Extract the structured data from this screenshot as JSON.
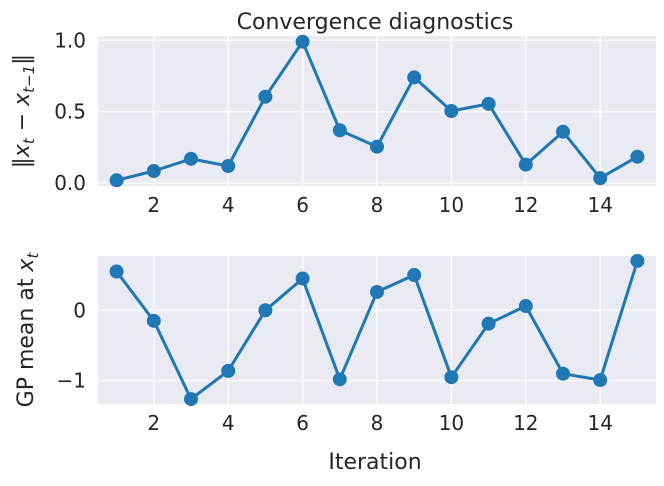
{
  "chart_data": [
    {
      "type": "line",
      "title": "Convergence diagnostics",
      "xlabel": "",
      "ylabel": "‖x_t − x_{t−1}‖",
      "x": [
        1,
        2,
        3,
        4,
        5,
        6,
        7,
        8,
        9,
        10,
        11,
        12,
        13,
        14,
        15
      ],
      "series": [
        {
          "values": [
            0.02,
            0.085,
            0.17,
            0.12,
            0.605,
            0.99,
            0.37,
            0.255,
            0.74,
            0.505,
            0.555,
            0.13,
            0.36,
            0.035,
            0.185
          ]
        }
      ],
      "xlim": [
        0.5,
        15.5
      ],
      "ylim": [
        -0.02,
        1.03
      ],
      "xticks": [
        2,
        4,
        6,
        8,
        10,
        12,
        14
      ],
      "xtick_labels": [
        "2",
        "4",
        "6",
        "8",
        "10",
        "12",
        "14"
      ],
      "yticks": [
        0.0,
        0.5,
        1.0
      ],
      "ytick_labels": [
        "0.0",
        "0.5",
        "1.0"
      ],
      "grid": true,
      "color": "#1f77b4"
    },
    {
      "type": "line",
      "title": "",
      "xlabel": "Iteration",
      "ylabel": "GP mean at x_t",
      "x": [
        1,
        2,
        3,
        4,
        5,
        6,
        7,
        8,
        9,
        10,
        11,
        12,
        13,
        14,
        15
      ],
      "series": [
        {
          "values": [
            0.55,
            -0.15,
            -1.26,
            -0.86,
            0.0,
            0.45,
            -0.98,
            0.26,
            0.5,
            -0.95,
            -0.19,
            0.06,
            -0.9,
            -0.99,
            0.7
          ]
        }
      ],
      "xlim": [
        0.5,
        15.5
      ],
      "ylim": [
        -1.33,
        0.77
      ],
      "xticks": [
        2,
        4,
        6,
        8,
        10,
        12,
        14
      ],
      "xtick_labels": [
        "2",
        "4",
        "6",
        "8",
        "10",
        "12",
        "14"
      ],
      "yticks": [
        -1,
        0
      ],
      "ytick_labels": [
        "−1",
        "0"
      ],
      "grid": true,
      "color": "#1f77b4"
    }
  ]
}
